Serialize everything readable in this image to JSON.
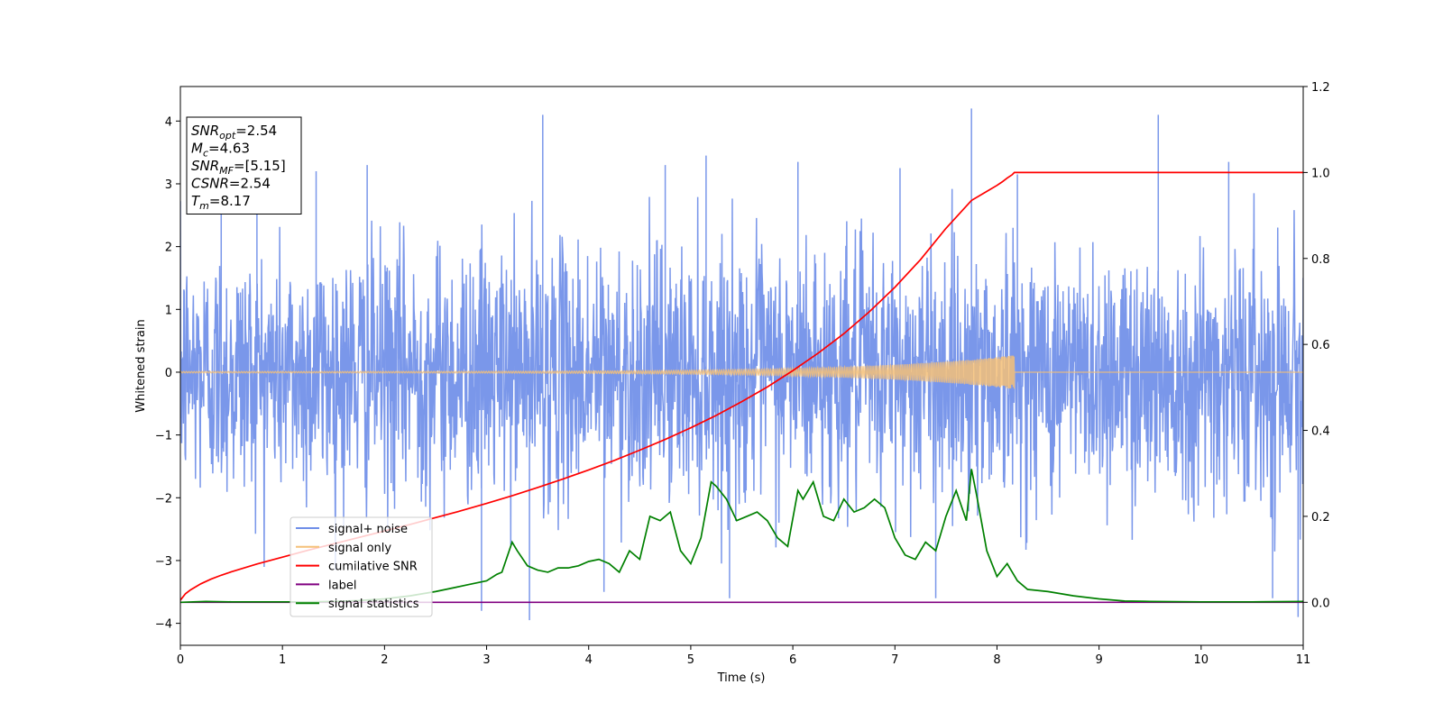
{
  "chart_data": {
    "type": "line",
    "title": "",
    "xlabel": "Time (s)",
    "ylabel": "Whitened strain",
    "y2label": "",
    "xlim": [
      0,
      11
    ],
    "ylim": [
      -4.35,
      4.55
    ],
    "y2lim": [
      -0.1,
      1.2
    ],
    "xticks": [
      0,
      1,
      2,
      3,
      4,
      5,
      6,
      7,
      8,
      9,
      10,
      11
    ],
    "yticks": [
      -4,
      -3,
      -2,
      -1,
      0,
      1,
      2,
      3,
      4
    ],
    "y2ticks": [
      0.0,
      0.2,
      0.4,
      0.6,
      0.8,
      1.0,
      1.2
    ],
    "grid": false,
    "legend_placement": "lower-left",
    "annotation": [
      {
        "main": "SNR",
        "sub": "opt",
        "rest": "=2.54"
      },
      {
        "main": "M",
        "sub": "c",
        "rest": "=4.63"
      },
      {
        "main": "SNR",
        "sub": "MF",
        "rest": "=[5.15]"
      },
      {
        "main": "CSNR",
        "sub": "",
        "rest": "=2.54"
      },
      {
        "main": "T",
        "sub": "m",
        "rest": "=8.17"
      }
    ],
    "series": [
      {
        "name": "signal+ noise",
        "axis": "left",
        "color": "#6f8ee8",
        "kind": "noise",
        "noise_std": 1.0,
        "noise_peaks": [
          [
            0.4,
            2.9
          ],
          [
            0.75,
            3.25
          ],
          [
            1.33,
            3.2
          ],
          [
            1.83,
            3.3
          ],
          [
            3.55,
            4.1
          ],
          [
            4.75,
            3.3
          ],
          [
            5.15,
            3.45
          ],
          [
            6.05,
            3.35
          ],
          [
            7.05,
            3.25
          ],
          [
            7.75,
            4.2
          ],
          [
            8.2,
            3.15
          ],
          [
            9.58,
            4.1
          ],
          [
            10.27,
            3.35
          ],
          [
            2.95,
            -3.8
          ],
          [
            3.42,
            -3.95
          ],
          [
            4.15,
            -3.5
          ],
          [
            5.38,
            -3.6
          ],
          [
            7.4,
            -3.6
          ],
          [
            10.7,
            -3.6
          ],
          [
            10.95,
            -3.9
          ]
        ]
      },
      {
        "name": "signal only",
        "axis": "left",
        "color": "#f5c078",
        "kind": "chirp",
        "t_merge": 8.17,
        "max_amplitude": 0.27
      },
      {
        "name": "cumilative SNR",
        "axis": "right",
        "color": "#ff0000",
        "x": [
          0,
          0.05,
          0.1,
          0.2,
          0.3,
          0.4,
          0.5,
          0.75,
          1.0,
          1.25,
          1.5,
          1.75,
          2.0,
          2.25,
          2.5,
          2.75,
          3.0,
          3.25,
          3.5,
          3.75,
          4.0,
          4.25,
          4.5,
          4.75,
          5.0,
          5.25,
          5.5,
          5.75,
          6.0,
          6.25,
          6.5,
          6.75,
          7.0,
          7.25,
          7.5,
          7.75,
          7.9,
          8.0,
          8.05,
          8.1,
          8.15,
          8.17,
          9.0,
          10.0,
          11.0
        ],
        "y": [
          0.005,
          0.02,
          0.029,
          0.043,
          0.054,
          0.063,
          0.071,
          0.089,
          0.105,
          0.121,
          0.136,
          0.151,
          0.166,
          0.181,
          0.197,
          0.213,
          0.23,
          0.248,
          0.267,
          0.287,
          0.308,
          0.33,
          0.354,
          0.379,
          0.406,
          0.435,
          0.467,
          0.501,
          0.539,
          0.58,
          0.625,
          0.676,
          0.733,
          0.797,
          0.87,
          0.935,
          0.956,
          0.97,
          0.978,
          0.987,
          0.995,
          1.0,
          1.0,
          1.0,
          1.0
        ]
      },
      {
        "name": "label",
        "axis": "right",
        "color": "#800080",
        "x": [
          0,
          11
        ],
        "y": [
          0.0,
          0.0
        ]
      },
      {
        "name": "signal statistics",
        "axis": "right",
        "color": "#008000",
        "x": [
          0,
          0.25,
          0.5,
          0.75,
          1.0,
          1.25,
          1.5,
          1.75,
          2.0,
          2.25,
          2.5,
          2.6,
          2.7,
          2.8,
          2.9,
          3.0,
          3.1,
          3.15,
          3.25,
          3.3,
          3.4,
          3.5,
          3.6,
          3.7,
          3.8,
          3.9,
          4.0,
          4.1,
          4.2,
          4.3,
          4.4,
          4.5,
          4.6,
          4.7,
          4.8,
          4.9,
          5.0,
          5.1,
          5.2,
          5.25,
          5.35,
          5.45,
          5.55,
          5.65,
          5.75,
          5.85,
          5.95,
          6.05,
          6.1,
          6.2,
          6.3,
          6.4,
          6.5,
          6.6,
          6.7,
          6.8,
          6.9,
          7.0,
          7.1,
          7.2,
          7.3,
          7.4,
          7.5,
          7.6,
          7.7,
          7.75,
          7.8,
          7.9,
          8.0,
          8.1,
          8.2,
          8.3,
          8.5,
          8.75,
          9.0,
          9.25,
          9.5,
          10.0,
          10.5,
          11.0
        ],
        "y": [
          0.0,
          0.002,
          0.001,
          0.001,
          0.001,
          0.001,
          0.002,
          0.004,
          0.008,
          0.015,
          0.025,
          0.03,
          0.035,
          0.04,
          0.045,
          0.05,
          0.065,
          0.07,
          0.14,
          0.12,
          0.085,
          0.075,
          0.07,
          0.08,
          0.08,
          0.085,
          0.095,
          0.1,
          0.09,
          0.07,
          0.12,
          0.1,
          0.2,
          0.19,
          0.21,
          0.12,
          0.09,
          0.15,
          0.28,
          0.27,
          0.24,
          0.19,
          0.2,
          0.21,
          0.19,
          0.15,
          0.13,
          0.26,
          0.24,
          0.28,
          0.2,
          0.19,
          0.24,
          0.21,
          0.22,
          0.24,
          0.22,
          0.15,
          0.11,
          0.1,
          0.14,
          0.12,
          0.2,
          0.26,
          0.19,
          0.31,
          0.25,
          0.12,
          0.06,
          0.09,
          0.05,
          0.03,
          0.025,
          0.015,
          0.008,
          0.003,
          0.002,
          0.001,
          0.001,
          0.002
        ]
      }
    ]
  }
}
